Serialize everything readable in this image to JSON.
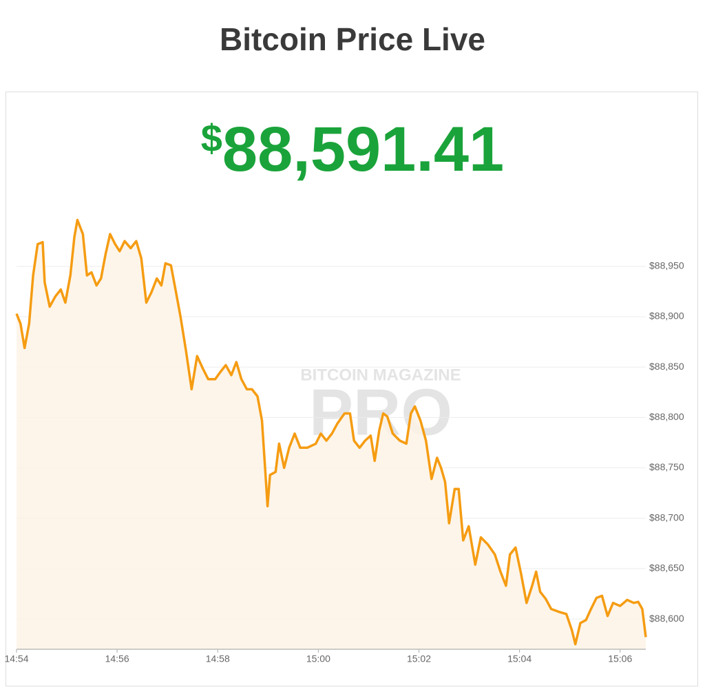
{
  "title": "Bitcoin Price Live",
  "price_currency": "$",
  "price_value": "88,591.41",
  "chart_data": {
    "type": "area",
    "watermark": [
      "BITCOIN MAGAZINE",
      "PRO"
    ],
    "color": "#f59c12",
    "fill": "#fdf3e6",
    "grid": true,
    "x": [
      894,
      894.08,
      894.16,
      894.25,
      894.33,
      894.42,
      894.52,
      894.56,
      894.66,
      894.77,
      894.88,
      894.97,
      895.07,
      895.15,
      895.21,
      895.32,
      895.4,
      895.49,
      895.59,
      895.68,
      895.77,
      895.86,
      895.96,
      896.05,
      896.15,
      896.27,
      896.38,
      896.48,
      896.58,
      896.68,
      896.79,
      896.88,
      896.96,
      897.07,
      897.16,
      897.26,
      897.37,
      897.48,
      897.59,
      897.7,
      897.81,
      897.95,
      898.05,
      898.16,
      898.27,
      898.37,
      898.47,
      898.58,
      898.68,
      898.79,
      898.88,
      898.95,
      898.99,
      899.04,
      899.15,
      899.22,
      899.32,
      899.42,
      899.53,
      899.64,
      899.78,
      899.95,
      900.05,
      900.16,
      900.27,
      900.38,
      900.52,
      900.63,
      900.71,
      900.82,
      900.93,
      901.04,
      901.12,
      901.21,
      901.29,
      901.37,
      901.48,
      901.62,
      901.75,
      901.84,
      901.92,
      902.03,
      902.14,
      902.25,
      902.36,
      902.44,
      902.52,
      902.6,
      902.71,
      902.79,
      902.88,
      902.99,
      903.12,
      903.23,
      903.37,
      903.51,
      903.62,
      903.73,
      903.81,
      903.92,
      904.03,
      904.14,
      904.25,
      904.33,
      904.41,
      904.52,
      904.63,
      904.79,
      904.93,
      905.04,
      905.11,
      905.21,
      905.32,
      905.42,
      905.53,
      905.64,
      905.75,
      905.86,
      906.0,
      906.14,
      906.27,
      906.36,
      906.44,
      906.51
    ],
    "values": [
      88903,
      88893,
      88869,
      88893,
      88941,
      88972,
      88974,
      88934,
      88910,
      88920,
      88927,
      88914,
      88941,
      88979,
      88996,
      88982,
      88941,
      88944,
      88931,
      88938,
      88962,
      88982,
      88972,
      88965,
      88975,
      88968,
      88975,
      88958,
      88914,
      88924,
      88938,
      88931,
      88953,
      88951,
      88927,
      88900,
      88866,
      88828,
      88861,
      88849,
      88838,
      88838,
      88845,
      88852,
      88842,
      88855,
      88838,
      88828,
      88828,
      88821,
      88797,
      88743,
      88712,
      88743,
      88746,
      88774,
      88750,
      88770,
      88784,
      88770,
      88770,
      88774,
      88784,
      88777,
      88784,
      88794,
      88804,
      88804,
      88777,
      88770,
      88777,
      88782,
      88757,
      88787,
      88804,
      88801,
      88784,
      88777,
      88774,
      88804,
      88811,
      88797,
      88777,
      88739,
      88760,
      88750,
      88736,
      88695,
      88729,
      88729,
      88678,
      88692,
      88654,
      88681,
      88674,
      88664,
      88647,
      88633,
      88664,
      88671,
      88645,
      88616,
      88633,
      88647,
      88627,
      88620,
      88610,
      88607,
      88605,
      88589,
      88575,
      88596,
      88599,
      88610,
      88621,
      88623,
      88603,
      88616,
      88613,
      88619,
      88616,
      88617,
      88610,
      88582
    ],
    "xlim": [
      894,
      906.51
    ],
    "ylim": [
      88570,
      89010
    ],
    "xticks": [
      {
        "value": 894,
        "label": "14:54"
      },
      {
        "value": 896,
        "label": "14:56"
      },
      {
        "value": 898,
        "label": "14:58"
      },
      {
        "value": 900,
        "label": "15:00"
      },
      {
        "value": 902,
        "label": "15:02"
      },
      {
        "value": 904,
        "label": "15:04"
      },
      {
        "value": 906,
        "label": "15:06"
      }
    ],
    "yticks": [
      {
        "value": 88600,
        "label": "$88,600"
      },
      {
        "value": 88650,
        "label": "$88,650"
      },
      {
        "value": 88700,
        "label": "$88,700"
      },
      {
        "value": 88750,
        "label": "$88,750"
      },
      {
        "value": 88800,
        "label": "$88,800"
      },
      {
        "value": 88850,
        "label": "$88,850"
      },
      {
        "value": 88900,
        "label": "$88,900"
      },
      {
        "value": 88950,
        "label": "$88,950"
      }
    ]
  }
}
